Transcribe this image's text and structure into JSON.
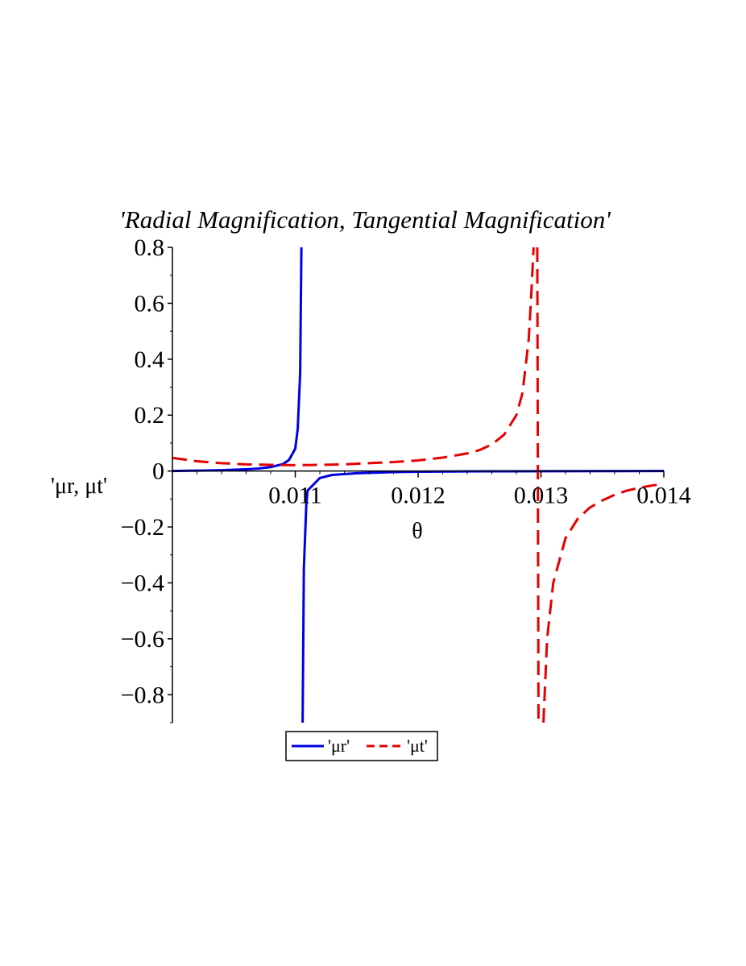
{
  "chart_data": {
    "type": "line",
    "title": "'Radial Magnification, Tangential Magnification'",
    "xlabel": "θ",
    "ylabel": "'μr, μt'",
    "xlim": [
      0.01,
      0.014
    ],
    "ylim": [
      -0.9,
      0.8
    ],
    "x_ticks": [
      {
        "value": 0.011,
        "label": "0.011"
      },
      {
        "value": 0.012,
        "label": "0.012"
      },
      {
        "value": 0.013,
        "label": "0.013"
      },
      {
        "value": 0.014,
        "label": "0.014"
      }
    ],
    "y_ticks": [
      {
        "value": 0.8,
        "label": "0.8"
      },
      {
        "value": 0.6,
        "label": "0.6"
      },
      {
        "value": 0.4,
        "label": "0.4"
      },
      {
        "value": 0.2,
        "label": "0.2"
      },
      {
        "value": 0,
        "label": "0"
      },
      {
        "value": -0.2,
        "label": "−0.2"
      },
      {
        "value": -0.4,
        "label": "−0.4"
      },
      {
        "value": -0.6,
        "label": "−0.6"
      },
      {
        "value": -0.8,
        "label": "−0.8"
      }
    ],
    "grid": false,
    "legend_position": "bottom",
    "series": [
      {
        "name": "'μr'",
        "color": "#0000e6",
        "dash": "solid",
        "points": [
          [
            0.01,
            0.0
          ],
          [
            0.0102,
            0.0015
          ],
          [
            0.0104,
            0.003
          ],
          [
            0.0106,
            0.006
          ],
          [
            0.0107,
            0.009
          ],
          [
            0.0108,
            0.014
          ],
          [
            0.0109,
            0.025
          ],
          [
            0.01095,
            0.04
          ],
          [
            0.011,
            0.08
          ],
          [
            0.01102,
            0.15
          ],
          [
            0.01104,
            0.35
          ],
          [
            0.01105,
            0.8
          ],
          null,
          [
            0.01106,
            -0.9
          ],
          [
            0.01107,
            -0.35
          ],
          [
            0.01109,
            -0.12
          ],
          [
            0.0111,
            -0.07
          ],
          [
            0.0112,
            -0.025
          ],
          [
            0.0113,
            -0.014
          ],
          [
            0.0115,
            -0.008
          ],
          [
            0.0118,
            -0.004
          ],
          [
            0.012,
            -0.0025
          ],
          [
            0.0125,
            -0.0012
          ],
          [
            0.013,
            -0.0006
          ],
          [
            0.0135,
            -0.0003
          ],
          [
            0.014,
            0.0
          ]
        ]
      },
      {
        "name": "'μt'",
        "color": "#e60000",
        "dash": "dashed",
        "points": [
          [
            0.01,
            0.047
          ],
          [
            0.0102,
            0.035
          ],
          [
            0.0104,
            0.028
          ],
          [
            0.0106,
            0.024
          ],
          [
            0.0108,
            0.022
          ],
          [
            0.011,
            0.021
          ],
          [
            0.0112,
            0.022
          ],
          [
            0.0114,
            0.024
          ],
          [
            0.0116,
            0.028
          ],
          [
            0.0118,
            0.032
          ],
          [
            0.012,
            0.038
          ],
          [
            0.0122,
            0.048
          ],
          [
            0.0124,
            0.063
          ],
          [
            0.0125,
            0.075
          ],
          [
            0.0126,
            0.095
          ],
          [
            0.0127,
            0.13
          ],
          [
            0.0128,
            0.2
          ],
          [
            0.01285,
            0.28
          ],
          [
            0.0129,
            0.47
          ],
          [
            0.01292,
            0.62
          ],
          [
            0.01294,
            0.8
          ],
          null,
          [
            0.01297,
            0.8
          ],
          [
            0.01298,
            -0.9
          ],
          null,
          [
            0.01302,
            -0.9
          ],
          [
            0.01305,
            -0.6
          ],
          [
            0.0131,
            -0.4
          ],
          [
            0.0132,
            -0.24
          ],
          [
            0.0133,
            -0.17
          ],
          [
            0.0134,
            -0.13
          ],
          [
            0.0135,
            -0.105
          ],
          [
            0.0136,
            -0.085
          ],
          [
            0.0137,
            -0.07
          ],
          [
            0.0138,
            -0.06
          ],
          [
            0.0139,
            -0.052
          ],
          [
            0.014,
            -0.046
          ]
        ]
      }
    ]
  }
}
